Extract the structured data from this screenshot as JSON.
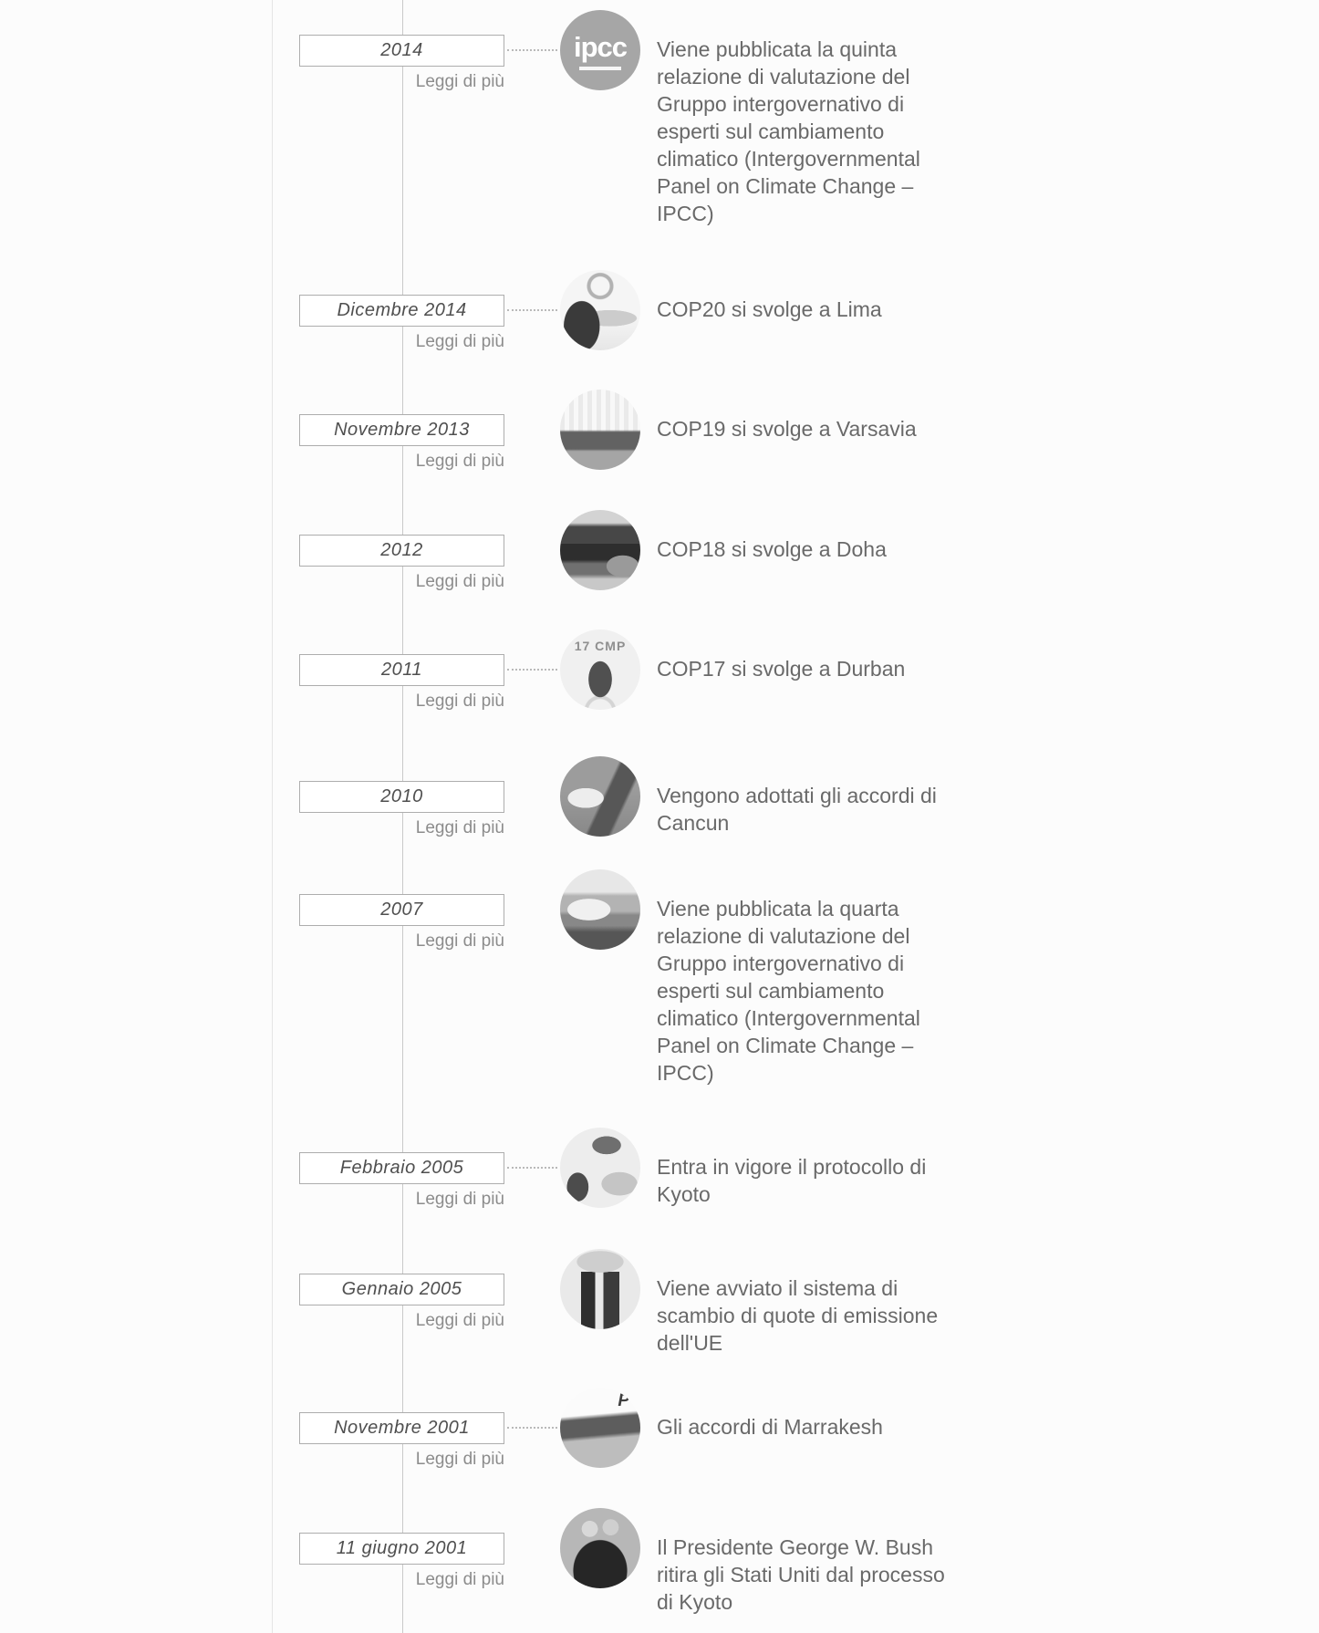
{
  "colors": {
    "page_background": "#fcfcfc",
    "timeline_line": "#c9c9c9",
    "left_rule": "#e5e5e5",
    "box_border": "#adadad",
    "date_text": "#4f4f4f",
    "description_text": "#696969",
    "read_more_text": "#8c8c8c",
    "connector_dots": "#b9b9b9"
  },
  "timeline": {
    "read_more_label": "Leggi di più",
    "events": [
      {
        "date": "2014",
        "description": "Viene pubblicata la quinta relazione di valutazione del Gruppo intergovernativo di esperti sul cambiamento climatico (Intergovernmental Panel on Climate Change – IPCC)",
        "image": "ipcc-logo",
        "image_text": "ipcc",
        "connector_dots": true
      },
      {
        "date": "Dicembre 2014",
        "description": "COP20 si svolge a Lima",
        "image": "cop20-lima",
        "image_text": "",
        "connector_dots": true
      },
      {
        "date": "Novembre 2013",
        "description": "COP19 si svolge a Varsavia",
        "image": "cop19-varsavia",
        "image_text": "",
        "connector_dots": false
      },
      {
        "date": "2012",
        "description": "COP18 si svolge a Doha",
        "image": "cop18-doha",
        "image_text": "",
        "connector_dots": false
      },
      {
        "date": "2011",
        "description": "COP17 si svolge a Durban",
        "image": "cop17-durban",
        "image_text": "17 CMP",
        "connector_dots": true
      },
      {
        "date": "2010",
        "description": "Vengono adottati gli accordi di Cancun",
        "image": "accordi-cancun",
        "image_text": "",
        "connector_dots": false
      },
      {
        "date": "2007",
        "description": "Viene pubblicata la quarta relazione di valutazione del Gruppo intergovernativo di esperti sul cambiamento climatico (Intergovernmental Panel on Climate Change – IPCC)",
        "image": "ipcc-quarta-relazione",
        "image_text": "",
        "connector_dots": false
      },
      {
        "date": "Febbraio 2005",
        "description": "Entra in vigore il protocollo di Kyoto",
        "image": "protocollo-kyoto",
        "image_text": "",
        "connector_dots": true
      },
      {
        "date": "Gennaio 2005",
        "description": "Viene avviato il sistema di scambio di quote di emissione dell'UE",
        "image": "emissioni-ue",
        "image_text": "",
        "connector_dots": false
      },
      {
        "date": "Novembre 2001",
        "description": "Gli accordi di Marrakesh",
        "image": "accordi-marrakesh",
        "image_text": "P",
        "connector_dots": true
      },
      {
        "date": "11 giugno 2001",
        "description": "Il Presidente George W. Bush ritira gli Stati Uniti dal processo di Kyoto",
        "image": "bush-kyoto",
        "image_text": "",
        "connector_dots": false
      }
    ]
  }
}
